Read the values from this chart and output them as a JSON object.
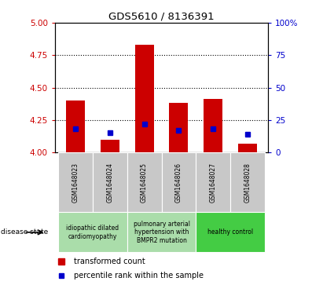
{
  "title": "GDS5610 / 8136391",
  "samples": [
    "GSM1648023",
    "GSM1648024",
    "GSM1648025",
    "GSM1648026",
    "GSM1648027",
    "GSM1648028"
  ],
  "red_values": [
    4.4,
    4.1,
    4.83,
    4.38,
    4.41,
    4.07
  ],
  "blue_values": [
    4.18,
    4.15,
    4.22,
    4.17,
    4.18,
    4.14
  ],
  "ylim_left": [
    4.0,
    5.0
  ],
  "ylim_right": [
    0,
    100
  ],
  "yticks_left": [
    4.0,
    4.25,
    4.5,
    4.75,
    5.0
  ],
  "yticks_right": [
    0,
    25,
    50,
    75,
    100
  ],
  "bar_color": "#CC0000",
  "marker_color": "#0000CC",
  "left_tick_color": "#CC0000",
  "right_tick_color": "#0000CC",
  "grid_yticks": [
    4.25,
    4.5,
    4.75
  ],
  "gray_box_color": "#C8C8C8",
  "group_configs": [
    {
      "start": 0,
      "end": 1,
      "label": "idiopathic dilated\ncardiomyopathy",
      "color": "#AADDAA"
    },
    {
      "start": 2,
      "end": 3,
      "label": "pulmonary arterial\nhypertension with\nBMPR2 mutation",
      "color": "#AADDAA"
    },
    {
      "start": 4,
      "end": 5,
      "label": "healthy control",
      "color": "#44CC44"
    }
  ],
  "legend_red_label": "transformed count",
  "legend_blue_label": "percentile rank within the sample",
  "disease_state_label": "disease state",
  "bar_width": 0.55
}
